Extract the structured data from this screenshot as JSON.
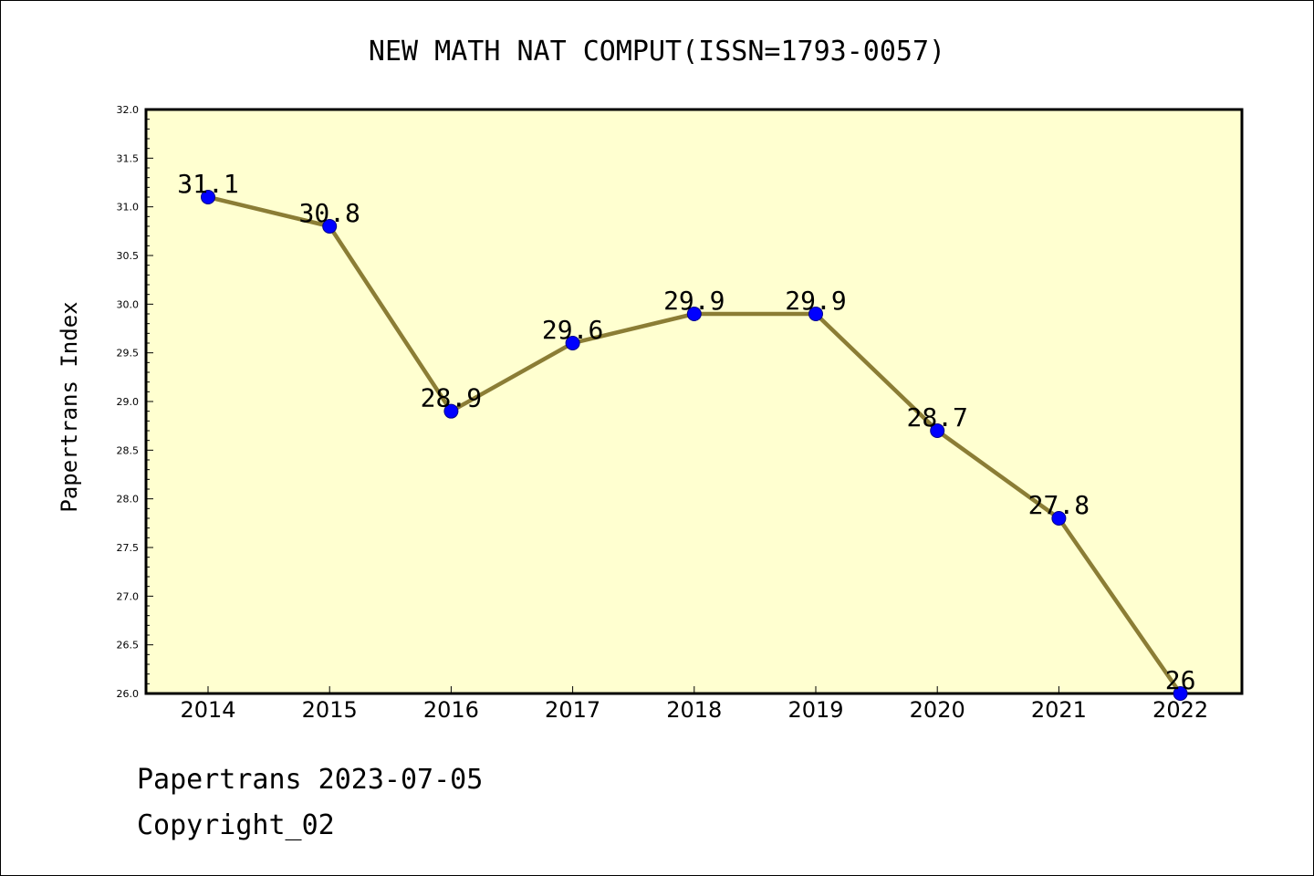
{
  "chart_data": {
    "type": "line",
    "title": "NEW MATH NAT COMPUT(ISSN=1793-0057)",
    "ylabel": "Papertrans Index",
    "xlabel": "",
    "categories": [
      "2014",
      "2015",
      "2016",
      "2017",
      "2018",
      "2019",
      "2020",
      "2021",
      "2022"
    ],
    "values": [
      31.1,
      30.8,
      28.9,
      29.6,
      29.9,
      29.9,
      28.7,
      27.8,
      26
    ],
    "data_labels": [
      "31.1",
      "30.8",
      "28.9",
      "29.6",
      "29.9",
      "29.9",
      "28.7",
      "27.8",
      "26"
    ],
    "ylim": [
      26.0,
      32.0
    ],
    "yticks": [
      "26.0",
      "26.5",
      "27.0",
      "27.5",
      "28.0",
      "28.5",
      "29.0",
      "29.5",
      "30.0",
      "30.5",
      "31.0",
      "31.5",
      "32.0"
    ],
    "grid": false,
    "colors": {
      "plot_background": "#ffffd0",
      "line": "#8b7d35",
      "marker": "#0000ff"
    }
  },
  "footer": {
    "line1": "Papertrans 2023-07-05",
    "line2": "Copyright_02"
  }
}
